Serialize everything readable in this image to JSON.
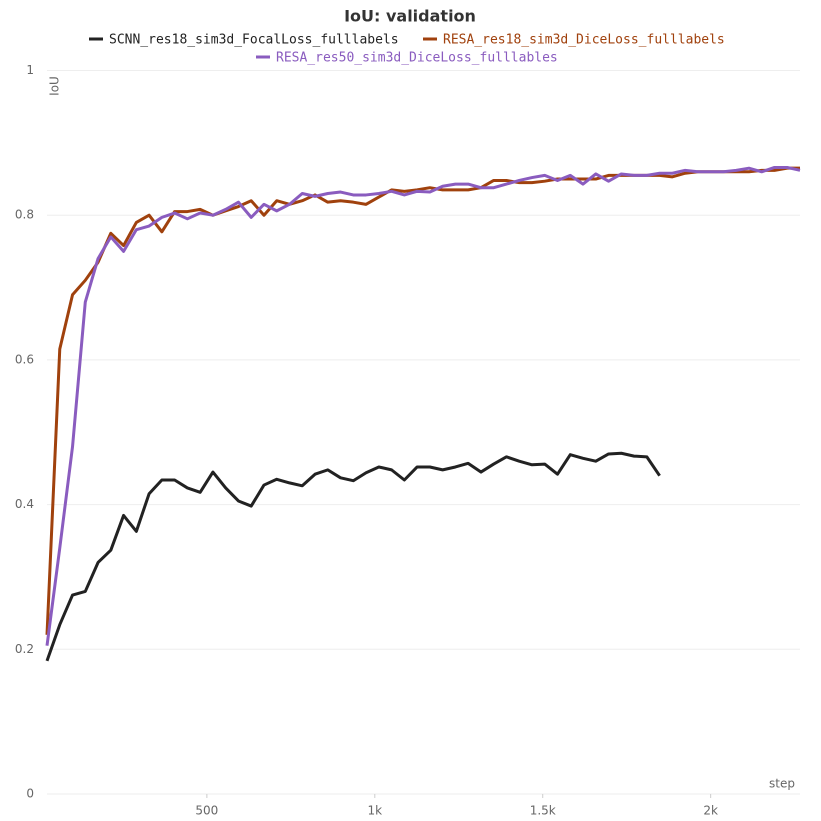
{
  "chart_data": {
    "type": "line",
    "title": "IoU: validation",
    "y_label": "IoU",
    "x_label": "step",
    "x": [
      24,
      62,
      100,
      138,
      176,
      214,
      252,
      290,
      328,
      366,
      404,
      442,
      480,
      518,
      556,
      594,
      632,
      670,
      708,
      746,
      784,
      822,
      860,
      898,
      936,
      974,
      1012,
      1050,
      1088,
      1126,
      1164,
      1202,
      1240,
      1278,
      1316,
      1354,
      1392,
      1430,
      1468,
      1506,
      1544,
      1582,
      1620,
      1658,
      1696,
      1734,
      1772,
      1810,
      1848,
      1886,
      1924,
      1962,
      2000,
      2038,
      2076,
      2114,
      2152,
      2190,
      2228,
      2266
    ],
    "series": [
      {
        "name": "SCNN_res18_sim3d_FocalLoss_fulllabels",
        "color": "#222222",
        "values": [
          0.184,
          0.234,
          0.275,
          0.28,
          0.32,
          0.337,
          0.385,
          0.363,
          0.415,
          0.434,
          0.434,
          0.423,
          0.417,
          0.445,
          0.423,
          0.405,
          0.398,
          0.427,
          0.435,
          0.43,
          0.426,
          0.442,
          0.448,
          0.437,
          0.433,
          0.444,
          0.452,
          0.448,
          0.434,
          0.452,
          0.452,
          0.448,
          0.452,
          0.457,
          0.445,
          0.456,
          0.466,
          0.46,
          0.455,
          0.456,
          0.442,
          0.469,
          0.464,
          0.46,
          0.47,
          0.471,
          0.467,
          0.466,
          0.44,
          null,
          null,
          null,
          null,
          null,
          null,
          null,
          null,
          null,
          null,
          null
        ]
      },
      {
        "name": "RESA_res18_sim3d_DiceLoss_fulllabels",
        "color": "#a0410d",
        "values": [
          0.22,
          0.615,
          0.69,
          0.71,
          0.735,
          0.775,
          0.758,
          0.79,
          0.8,
          0.777,
          0.805,
          0.805,
          0.808,
          0.8,
          0.806,
          0.812,
          0.82,
          0.8,
          0.82,
          0.815,
          0.82,
          0.828,
          0.818,
          0.82,
          0.818,
          0.815,
          0.825,
          0.835,
          0.833,
          0.835,
          0.838,
          0.835,
          0.835,
          0.835,
          0.838,
          0.848,
          0.848,
          0.845,
          0.845,
          0.847,
          0.85,
          0.85,
          0.85,
          0.85,
          0.855,
          0.855,
          0.855,
          0.855,
          0.855,
          0.853,
          0.858,
          0.86,
          0.86,
          0.86,
          0.86,
          0.86,
          0.862,
          0.862,
          0.865,
          0.865
        ]
      },
      {
        "name": "RESA_res50_sim3d_DiceLoss_fulllables",
        "color": "#8a5cbf",
        "values": [
          0.205,
          0.34,
          0.48,
          0.68,
          0.74,
          0.77,
          0.75,
          0.78,
          0.785,
          0.797,
          0.803,
          0.795,
          0.803,
          0.8,
          0.808,
          0.818,
          0.797,
          0.815,
          0.806,
          0.815,
          0.83,
          0.826,
          0.83,
          0.832,
          0.828,
          0.828,
          0.83,
          0.833,
          0.828,
          0.833,
          0.832,
          0.84,
          0.843,
          0.843,
          0.838,
          0.838,
          0.843,
          0.848,
          0.852,
          0.855,
          0.848,
          0.855,
          0.843,
          0.857,
          0.847,
          0.857,
          0.855,
          0.855,
          0.858,
          0.858,
          0.862,
          0.86,
          0.86,
          0.86,
          0.862,
          0.865,
          0.86,
          0.866,
          0.866,
          0.862
        ]
      }
    ],
    "xlim": [
      24,
      2266
    ],
    "ylim": [
      0,
      1
    ],
    "xticks": [
      {
        "value": 500,
        "label": "500"
      },
      {
        "value": 1000,
        "label": "1k"
      },
      {
        "value": 1500,
        "label": "1.5k"
      },
      {
        "value": 2000,
        "label": "2k"
      }
    ],
    "yticks": [
      0,
      0.2,
      0.4,
      0.6,
      0.8,
      1
    ],
    "grid": true
  }
}
